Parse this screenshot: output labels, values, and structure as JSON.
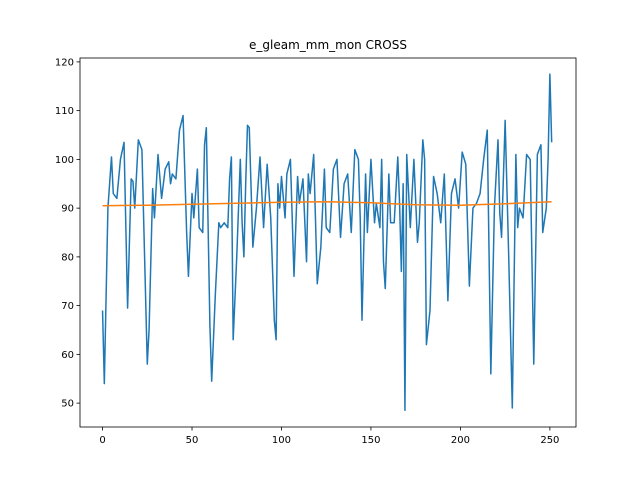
{
  "chart_data": {
    "type": "line",
    "title": "e_gleam_mm_mon CROSS",
    "xlim": [
      -12.6,
      264.6
    ],
    "ylim": [
      45.1,
      120.8
    ],
    "xticks": [
      0,
      50,
      100,
      150,
      200,
      250
    ],
    "yticks": [
      50,
      60,
      70,
      80,
      90,
      100,
      110,
      120
    ],
    "series": [
      {
        "color": "#1f77b4",
        "x": [
          0,
          1,
          3,
          5,
          6,
          8,
          10,
          12,
          14,
          16,
          17,
          18,
          20,
          22,
          25,
          26,
          28,
          29,
          31,
          33,
          35,
          37,
          38,
          39,
          41,
          43,
          45,
          47,
          48,
          50,
          51,
          53,
          54,
          56,
          57,
          58,
          60,
          61,
          63,
          65,
          66,
          68,
          70,
          71,
          72,
          73,
          75,
          77,
          78,
          79,
          80,
          81,
          82,
          84,
          86,
          88,
          90,
          92,
          94,
          96,
          97,
          98,
          99,
          100,
          102,
          103,
          105,
          107,
          109,
          110,
          112,
          114,
          115,
          116,
          118,
          120,
          122,
          124,
          125,
          127,
          129,
          131,
          133,
          135,
          137,
          139,
          141,
          143,
          144,
          145,
          147,
          148,
          150,
          152,
          153,
          155,
          156,
          157,
          158,
          160,
          161,
          163,
          165,
          166,
          167,
          168,
          169,
          170,
          172,
          174,
          176,
          177,
          179,
          180,
          181,
          183,
          185,
          187,
          189,
          191,
          193,
          195,
          197,
          199,
          201,
          203,
          205,
          207,
          209,
          211,
          213,
          215,
          217,
          219,
          221,
          222,
          223,
          225,
          227,
          229,
          231,
          232,
          233,
          235,
          237,
          239,
          241,
          243,
          245,
          246,
          248,
          249,
          250,
          251
        ],
        "values": [
          69,
          54,
          90,
          100.5,
          93,
          92,
          100,
          103.5,
          69.5,
          96,
          95.5,
          90,
          104,
          102,
          58,
          65,
          94,
          88,
          101,
          92,
          98,
          99.5,
          95,
          97,
          96,
          106,
          109,
          85,
          76,
          93,
          88,
          98,
          86,
          85,
          103,
          106.5,
          66,
          54.5,
          72,
          87,
          86,
          87,
          86,
          96,
          100.5,
          63,
          80,
          100,
          87,
          80,
          95,
          107,
          106.5,
          82,
          90,
          100.5,
          86,
          99,
          88,
          67,
          63,
          95,
          90,
          96.5,
          88,
          97,
          100,
          76,
          96.5,
          91,
          96,
          79,
          97,
          93,
          101,
          74.5,
          82,
          98,
          86,
          85,
          98,
          100,
          84,
          95,
          97,
          85,
          102,
          100,
          88,
          67,
          97,
          85,
          100,
          87,
          91,
          86,
          100,
          79,
          73.5,
          97,
          87,
          87,
          100.5,
          91,
          77,
          95,
          48.5,
          101,
          86,
          100,
          83,
          87,
          104,
          100,
          62,
          69,
          96.5,
          93,
          87,
          97,
          71,
          93,
          96,
          90,
          101.5,
          99,
          74,
          90,
          91,
          93,
          100,
          106,
          56,
          90,
          104,
          89,
          84,
          108,
          80,
          49,
          101,
          86,
          90,
          88,
          101,
          100,
          58,
          101,
          103,
          85,
          90,
          100,
          117.5,
          103.5
        ]
      },
      {
        "color": "#ff7f0e",
        "x": [
          0,
          25,
          50,
          75,
          100,
          125,
          150,
          175,
          200,
          225,
          251
        ],
        "values": [
          90.5,
          90.6,
          90.8,
          91.0,
          91.2,
          91.3,
          91.1,
          90.7,
          90.6,
          90.9,
          91.3
        ]
      }
    ]
  }
}
